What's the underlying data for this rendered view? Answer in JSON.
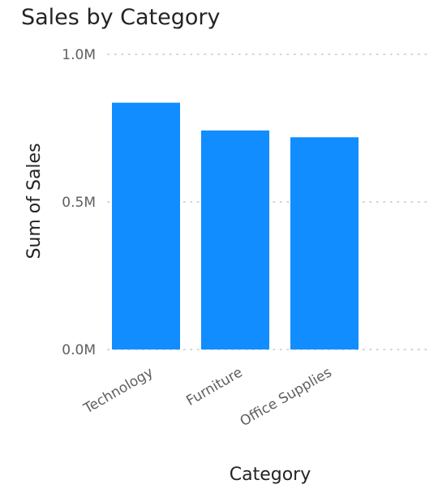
{
  "chart_data": {
    "type": "bar",
    "title": "Sales by Category",
    "xlabel": "Category",
    "ylabel": "Sum of Sales",
    "categories": [
      "Technology",
      "Furniture",
      "Office Supplies"
    ],
    "values": [
      836154,
      741999,
      719047
    ],
    "ylim": [
      0,
      1000000
    ],
    "yticks": [
      0,
      500000,
      1000000
    ],
    "ytick_labels": [
      "0.0M",
      "0.5M",
      "1.0M"
    ],
    "grid": true,
    "legend": "none",
    "bar_color": "#118DFF"
  }
}
